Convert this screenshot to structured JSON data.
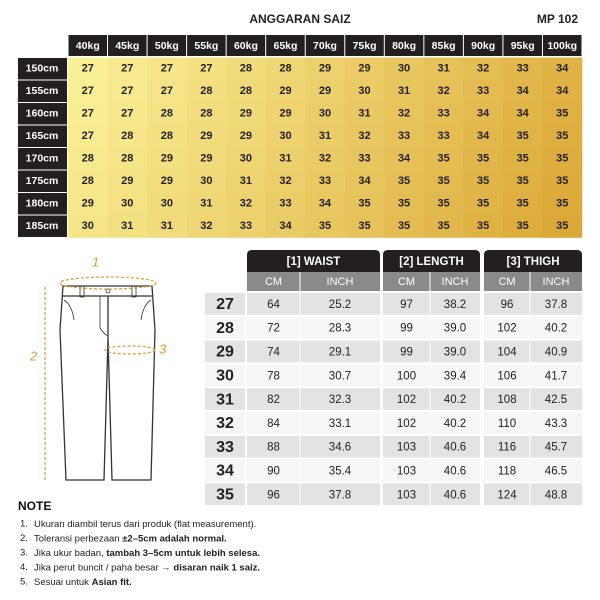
{
  "header": {
    "title": "ANGGARAN SAIZ",
    "code": "MP 102"
  },
  "size_chart": {
    "weights": [
      "40kg",
      "45kg",
      "50kg",
      "55kg",
      "60kg",
      "65kg",
      "70kg",
      "75kg",
      "80kg",
      "85kg",
      "90kg",
      "95kg",
      "100kg"
    ],
    "rows": [
      {
        "height": "150cm",
        "sizes": [
          "27",
          "27",
          "27",
          "27",
          "28",
          "28",
          "29",
          "29",
          "30",
          "31",
          "32",
          "33",
          "34"
        ]
      },
      {
        "height": "155cm",
        "sizes": [
          "27",
          "27",
          "27",
          "28",
          "28",
          "29",
          "29",
          "30",
          "31",
          "32",
          "33",
          "34",
          "34"
        ]
      },
      {
        "height": "160cm",
        "sizes": [
          "27",
          "27",
          "28",
          "28",
          "29",
          "29",
          "30",
          "31",
          "32",
          "33",
          "34",
          "34",
          "35"
        ]
      },
      {
        "height": "165cm",
        "sizes": [
          "27",
          "28",
          "28",
          "29",
          "29",
          "30",
          "31",
          "32",
          "33",
          "33",
          "34",
          "35",
          "35"
        ]
      },
      {
        "height": "170cm",
        "sizes": [
          "28",
          "28",
          "29",
          "29",
          "30",
          "31",
          "32",
          "33",
          "34",
          "35",
          "35",
          "35",
          "35"
        ]
      },
      {
        "height": "175cm",
        "sizes": [
          "28",
          "29",
          "29",
          "30",
          "31",
          "32",
          "33",
          "34",
          "35",
          "35",
          "35",
          "35",
          "35"
        ]
      },
      {
        "height": "180cm",
        "sizes": [
          "29",
          "30",
          "30",
          "31",
          "32",
          "33",
          "34",
          "35",
          "35",
          "35",
          "35",
          "35",
          "35"
        ]
      },
      {
        "height": "185cm",
        "sizes": [
          "30",
          "31",
          "31",
          "32",
          "33",
          "34",
          "35",
          "35",
          "35",
          "35",
          "35",
          "35",
          "35"
        ]
      }
    ]
  },
  "measurements": {
    "groups": [
      {
        "label": "[1] WAIST",
        "units": [
          "CM",
          "INCH"
        ]
      },
      {
        "label": "[2] LENGTH",
        "units": [
          "CM",
          "INCH"
        ]
      },
      {
        "label": "[3] THIGH",
        "units": [
          "CM",
          "INCH"
        ]
      }
    ],
    "rows": [
      {
        "size": "27",
        "values": [
          "64",
          "25.2",
          "97",
          "38.2",
          "96",
          "37.8"
        ]
      },
      {
        "size": "28",
        "values": [
          "72",
          "28.3",
          "99",
          "39.0",
          "102",
          "40.2"
        ]
      },
      {
        "size": "29",
        "values": [
          "74",
          "29.1",
          "99",
          "39.0",
          "104",
          "40.9"
        ]
      },
      {
        "size": "30",
        "values": [
          "78",
          "30.7",
          "100",
          "39.4",
          "106",
          "41.7"
        ]
      },
      {
        "size": "31",
        "values": [
          "82",
          "32.3",
          "102",
          "40.2",
          "108",
          "42.5"
        ]
      },
      {
        "size": "32",
        "values": [
          "84",
          "33.1",
          "102",
          "40.2",
          "110",
          "43.3"
        ]
      },
      {
        "size": "33",
        "values": [
          "88",
          "34.6",
          "103",
          "40.6",
          "116",
          "45.7"
        ]
      },
      {
        "size": "34",
        "values": [
          "90",
          "35.4",
          "103",
          "40.6",
          "118",
          "46.5"
        ]
      },
      {
        "size": "35",
        "values": [
          "96",
          "37.8",
          "103",
          "40.6",
          "124",
          "48.8"
        ]
      }
    ]
  },
  "diagram": {
    "labels": [
      "1",
      "2",
      "3"
    ]
  },
  "notes": {
    "title": "NOTE",
    "items": [
      {
        "number": "1.",
        "parts": [
          {
            "text": "Ukuran diambil terus dari produk (flat measurement).",
            "bold": false
          }
        ]
      },
      {
        "number": "2.",
        "parts": [
          {
            "text": "Toleransi perbezaan ",
            "bold": false
          },
          {
            "text": "±2–5cm adalah normal.",
            "bold": true
          }
        ]
      },
      {
        "number": "3.",
        "parts": [
          {
            "text": "Jika ukur badan, ",
            "bold": false
          },
          {
            "text": "tambah 3–5cm untuk lebih selesa.",
            "bold": true
          }
        ]
      },
      {
        "number": "4.",
        "parts": [
          {
            "text": "Jika perut buncit / paha besar ",
            "bold": false
          },
          {
            "text": "→ disaran naik 1 saiz.",
            "bold": true
          }
        ]
      },
      {
        "number": "5.",
        "parts": [
          {
            "text": "Sesuai untuk ",
            "bold": false
          },
          {
            "text": "Asian fit.",
            "bold": true
          }
        ]
      }
    ]
  }
}
